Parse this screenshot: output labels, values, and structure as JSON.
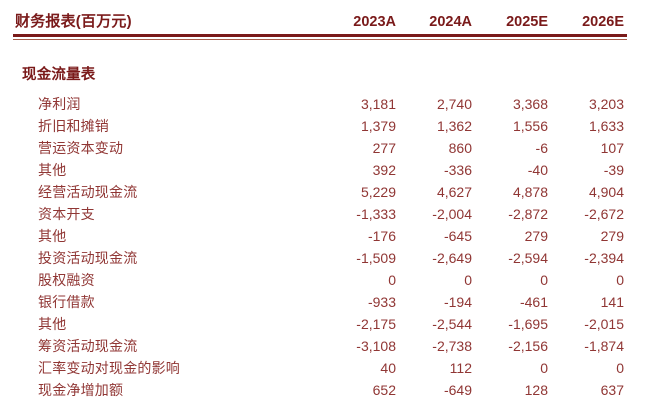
{
  "header": {
    "title": "财务报表(百万元)",
    "columns": [
      "2023A",
      "2024A",
      "2025E",
      "2026E"
    ]
  },
  "section_title": "现金流量表",
  "rows": [
    {
      "label": "净利润",
      "values": [
        "3,181",
        "2,740",
        "3,368",
        "3,203"
      ]
    },
    {
      "label": "折旧和摊销",
      "values": [
        "1,379",
        "1,362",
        "1,556",
        "1,633"
      ]
    },
    {
      "label": "营运资本变动",
      "values": [
        "277",
        "860",
        "-6",
        "107"
      ]
    },
    {
      "label": "其他",
      "values": [
        "392",
        "-336",
        "-40",
        "-39"
      ]
    },
    {
      "label": "经营活动现金流",
      "values": [
        "5,229",
        "4,627",
        "4,878",
        "4,904"
      ]
    },
    {
      "label": "资本开支",
      "values": [
        "-1,333",
        "-2,004",
        "-2,872",
        "-2,672"
      ]
    },
    {
      "label": "其他",
      "values": [
        "-176",
        "-645",
        "279",
        "279"
      ]
    },
    {
      "label": "投资活动现金流",
      "values": [
        "-1,509",
        "-2,649",
        "-2,594",
        "-2,394"
      ]
    },
    {
      "label": "股权融资",
      "values": [
        "0",
        "0",
        "0",
        "0"
      ]
    },
    {
      "label": "银行借款",
      "values": [
        "-933",
        "-194",
        "-461",
        "141"
      ]
    },
    {
      "label": "其他",
      "values": [
        "-2,175",
        "-2,544",
        "-1,695",
        "-2,015"
      ]
    },
    {
      "label": "筹资活动现金流",
      "values": [
        "-3,108",
        "-2,738",
        "-2,156",
        "-1,874"
      ]
    },
    {
      "label": "汇率变动对现金的影响",
      "values": [
        "40",
        "112",
        "0",
        "0"
      ]
    },
    {
      "label": "现金净增加额",
      "values": [
        "652",
        "-649",
        "128",
        "637"
      ]
    }
  ],
  "colors": {
    "header_text": "#7a1a1a",
    "body_text": "#903634",
    "rule_thick": "#7a1a1a",
    "rule_thin": "#a65c4a"
  }
}
